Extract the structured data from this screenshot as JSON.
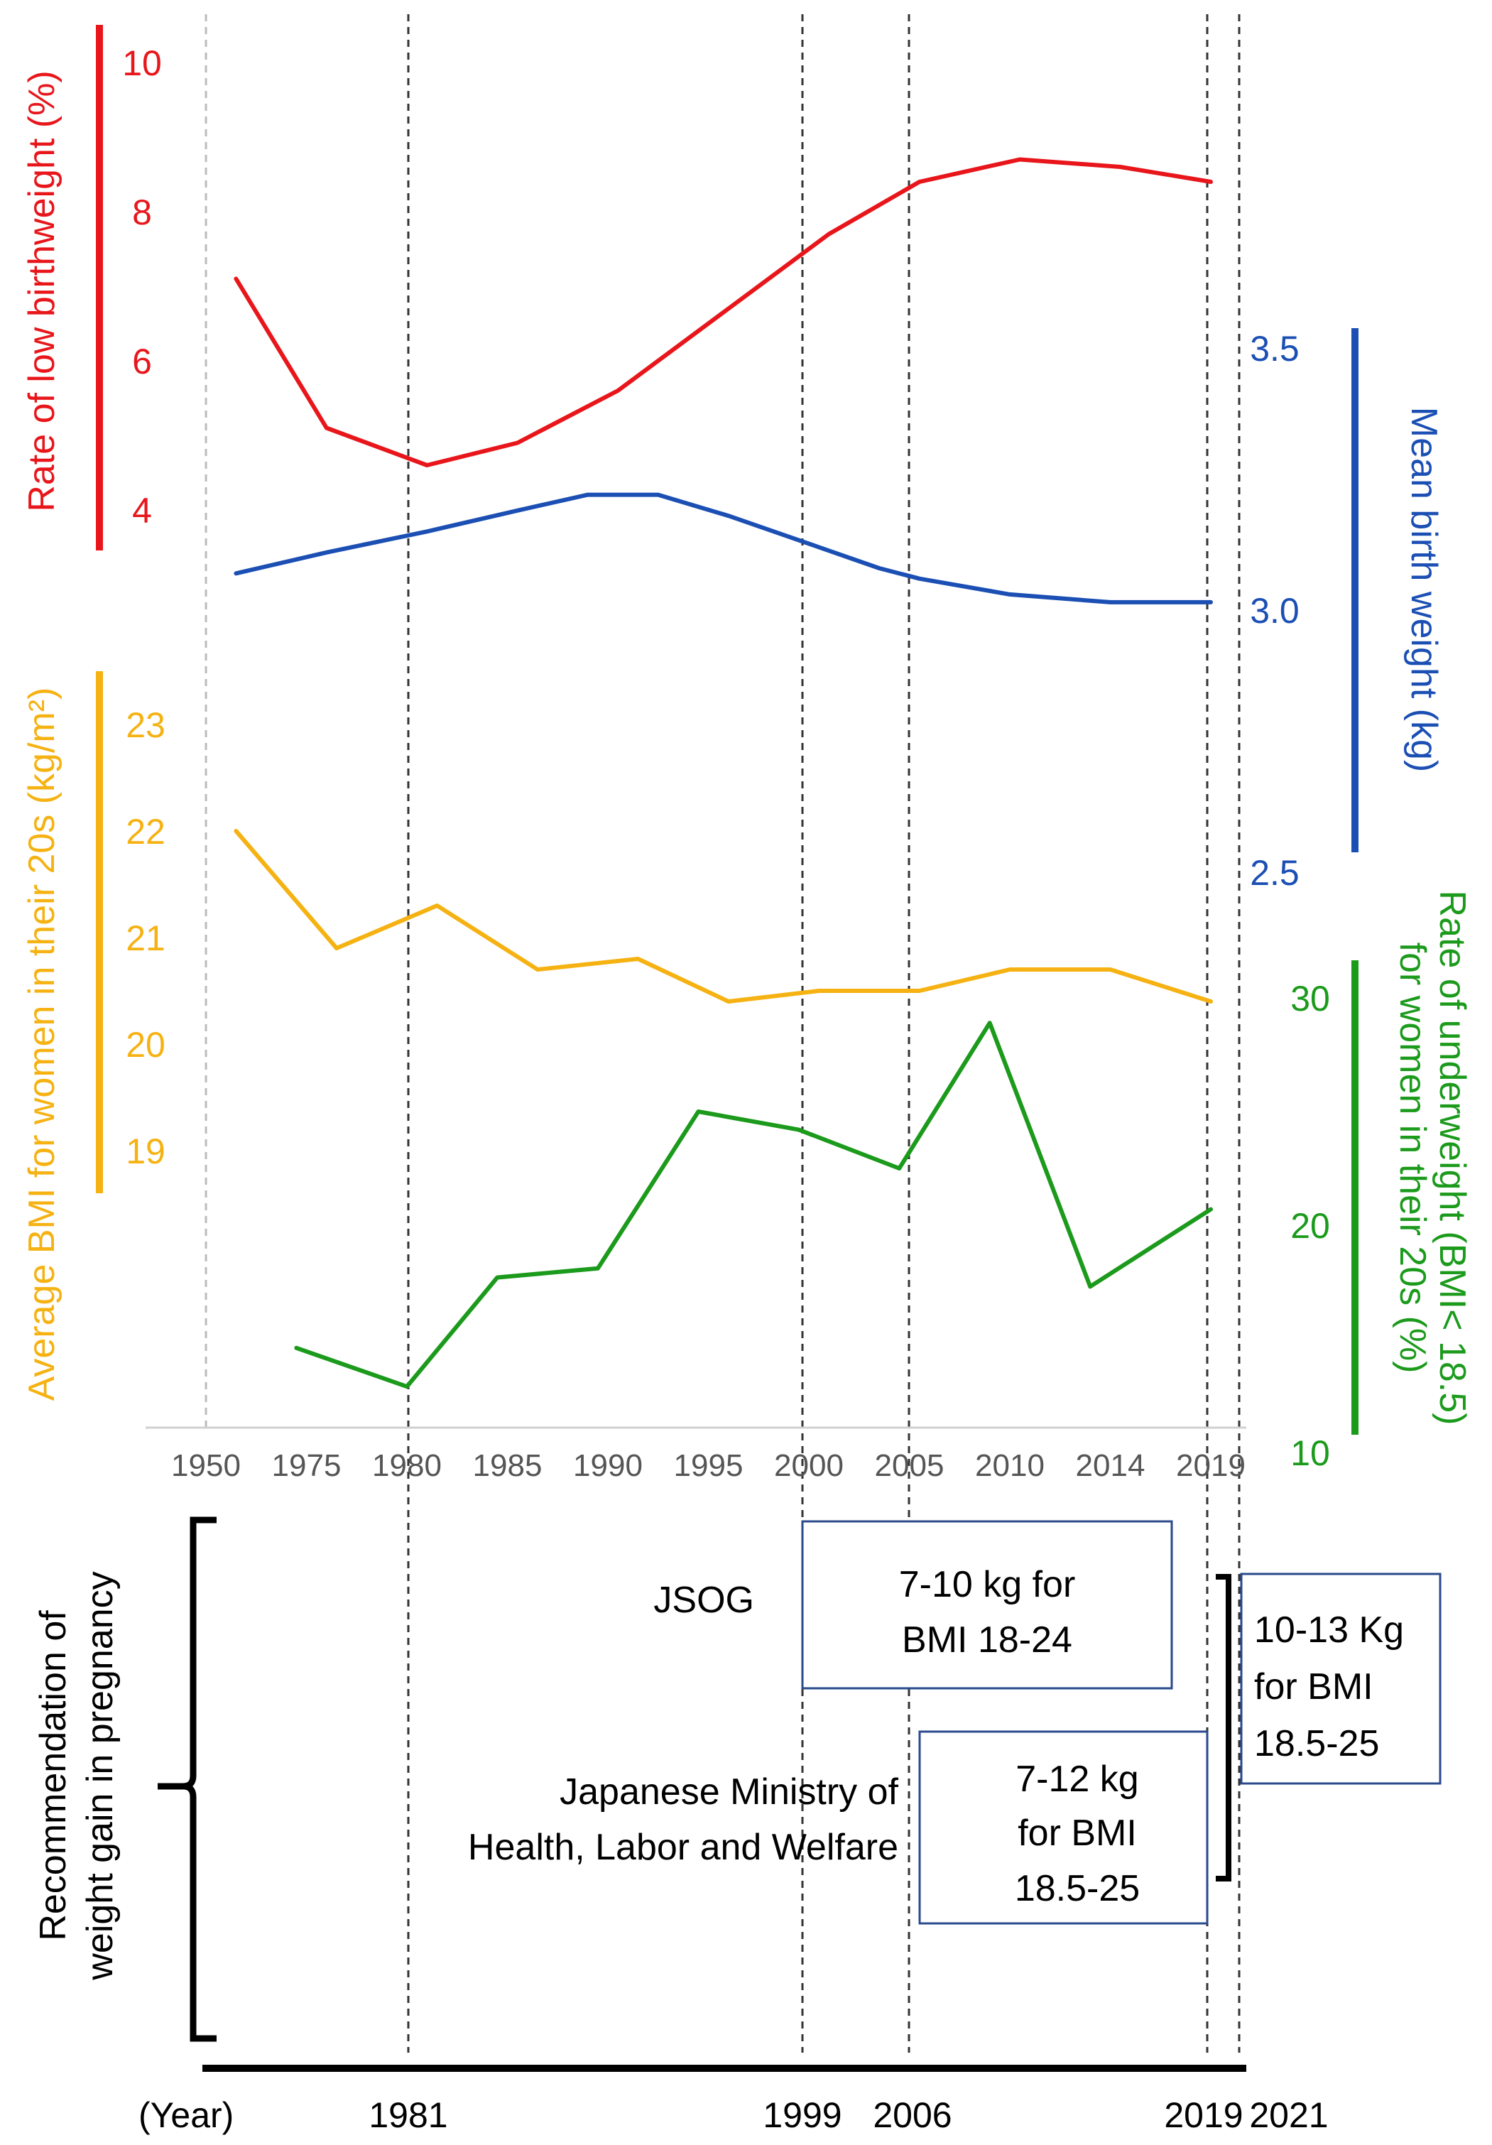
{
  "colors": {
    "red": "#e8161b",
    "blue": "#1b4fb4",
    "orange": "#f5b212",
    "green": "#1b9a1b",
    "box_border": "#2a4a8c"
  },
  "chart_data": {
    "type": "line",
    "x_axis": {
      "categories": [
        "1950",
        "1975",
        "1980",
        "1985",
        "1990",
        "1995",
        "2000",
        "2005",
        "2010",
        "2014",
        "2019"
      ]
    },
    "vertical_reference_years": [
      1981,
      1999,
      2006,
      2019,
      2021
    ],
    "series": [
      {
        "name": "Rate of low birthweight (%)",
        "axis_label": "Rate of low birthweight (%)",
        "axis_side": "left",
        "color": "red",
        "ticks": [
          "10",
          "8",
          "6",
          "4"
        ],
        "tick_values": [
          10,
          8,
          6,
          4
        ],
        "points": [
          [
            0.3,
            7.1
          ],
          [
            1.2,
            5.1
          ],
          [
            2.2,
            4.6
          ],
          [
            3.1,
            4.9
          ],
          [
            4.1,
            5.6
          ],
          [
            5.2,
            6.7
          ],
          [
            6.2,
            7.7
          ],
          [
            7.1,
            8.4
          ],
          [
            8.1,
            8.7
          ],
          [
            9.1,
            8.6
          ],
          [
            10.0,
            8.4
          ]
        ]
      },
      {
        "name": "Mean birth weight (kg)",
        "axis_label": "Mean birth weight (kg)",
        "axis_side": "right",
        "color": "blue",
        "ticks": [
          "3.5",
          "3.0",
          "2.5"
        ],
        "tick_values": [
          3.5,
          3.0,
          2.5
        ],
        "points": [
          [
            0.3,
            3.07
          ],
          [
            1.2,
            3.11
          ],
          [
            2.2,
            3.15
          ],
          [
            3.1,
            3.19
          ],
          [
            3.8,
            3.22
          ],
          [
            4.5,
            3.22
          ],
          [
            5.2,
            3.18
          ],
          [
            6.1,
            3.12
          ],
          [
            6.7,
            3.08
          ],
          [
            7.1,
            3.06
          ],
          [
            8.0,
            3.03
          ],
          [
            9.0,
            3.015
          ],
          [
            10.0,
            3.015
          ]
        ]
      },
      {
        "name": "Average BMI for women in their 20s (kg/m²)",
        "axis_label": "Average BMI for women in their 20s (kg/m²)",
        "axis_side": "left",
        "color": "orange",
        "ticks": [
          "23",
          "22",
          "21",
          "20",
          "19"
        ],
        "tick_values": [
          23,
          22,
          21,
          20,
          19
        ],
        "points": [
          [
            0.3,
            22.0
          ],
          [
            1.3,
            20.9
          ],
          [
            2.3,
            21.3
          ],
          [
            3.3,
            20.7
          ],
          [
            4.3,
            20.8
          ],
          [
            5.2,
            20.4
          ],
          [
            6.1,
            20.5
          ],
          [
            7.1,
            20.5
          ],
          [
            8.0,
            20.7
          ],
          [
            9.0,
            20.7
          ],
          [
            10.0,
            20.4
          ]
        ]
      },
      {
        "name": "Rate of underweight (BMI< 18.5) for women in their 20s (%)",
        "axis_label_line1": "Rate of underweight (BMI< 18.5)",
        "axis_label_line2": "for women in their 20s (%)",
        "axis_side": "right",
        "color": "green",
        "ticks": [
          "30",
          "20",
          "10"
        ],
        "tick_values": [
          30,
          20,
          10
        ],
        "points": [
          [
            0.9,
            14.6
          ],
          [
            2.0,
            12.9
          ],
          [
            2.9,
            17.7
          ],
          [
            3.9,
            18.1
          ],
          [
            4.9,
            25.0
          ],
          [
            5.9,
            24.2
          ],
          [
            6.9,
            22.5
          ],
          [
            7.8,
            28.9
          ],
          [
            8.8,
            17.3
          ],
          [
            10.0,
            20.7
          ]
        ]
      }
    ]
  },
  "recommendations": {
    "title_line1": "Recommendation of",
    "title_line2": "weight gain in pregnancy",
    "jsog_label": "JSOG",
    "jsog_box_line1": "7-10 kg for",
    "jsog_box_line2": "BMI 18-24",
    "ministry_label_line1": "Japanese Ministry of",
    "ministry_label_line2": "Health, Labor and Welfare",
    "ministry_box_line1": "7-12 kg",
    "ministry_box_line2": "for BMI",
    "ministry_box_line3": "18.5-25",
    "new_box_line1": "10-13 Kg",
    "new_box_line2": "for BMI",
    "new_box_line3": "18.5-25"
  },
  "timeline": {
    "year_label": "(Year)",
    "years": [
      "1981",
      "1999",
      "2006",
      "2019",
      "2021"
    ]
  }
}
